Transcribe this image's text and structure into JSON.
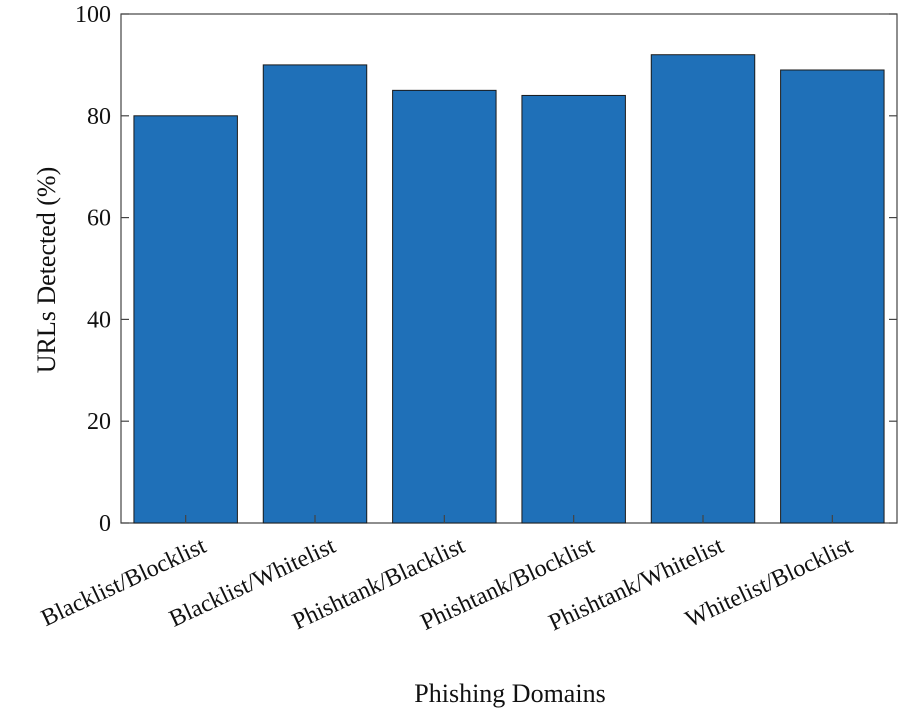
{
  "chart_data": {
    "type": "bar",
    "title": "",
    "xlabel": "Phishing Domains",
    "ylabel": "URLs Detected (%)",
    "categories": [
      "Blacklist/Blocklist",
      "Blacklist/Whitelist",
      "Phishtank/Blacklist",
      "Phishtank/Blocklist",
      "Phishtank/Whitelist",
      "Whitelist/Blocklist"
    ],
    "values": [
      80,
      90,
      85,
      84,
      92,
      89
    ],
    "ylim": [
      0,
      100
    ],
    "yticks": [
      0,
      20,
      40,
      60,
      80,
      100
    ],
    "grid": false,
    "bar_color": "#1f70b8",
    "bar_edge_color": "#1a1a1a"
  }
}
